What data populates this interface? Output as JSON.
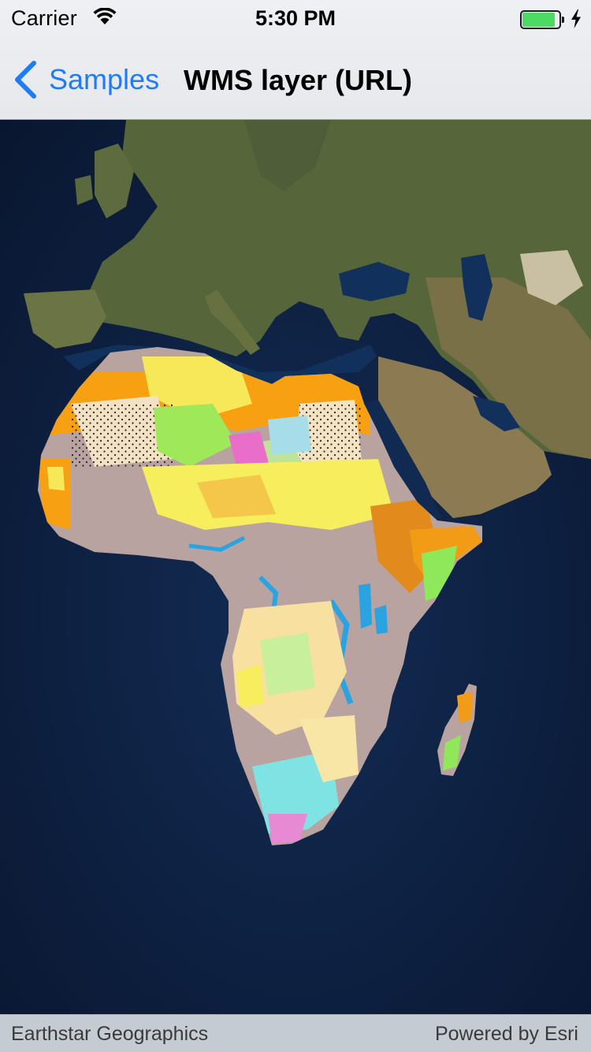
{
  "status_bar": {
    "carrier": "Carrier",
    "time": "5:30 PM",
    "battery_level": 0.9,
    "battery_color": "#4cd964"
  },
  "nav_bar": {
    "back_label": "Samples",
    "back_icon": "chevron-left-icon",
    "title": "WMS layer (URL)",
    "tint_color": "#1f7cf9"
  },
  "map": {
    "basemap_colors": {
      "ocean": "#0f2447",
      "land_north": "#5b6a3d",
      "arabia": "#8c7a52"
    }
  },
  "attribution": {
    "left": "Earthstar Geographics",
    "right": "Powered by Esri"
  }
}
